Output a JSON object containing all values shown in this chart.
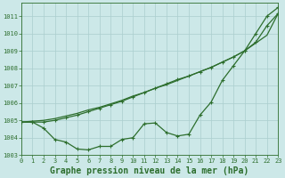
{
  "title": "Graphe pression niveau de la mer (hPa)",
  "hours": [
    0,
    1,
    2,
    3,
    4,
    5,
    6,
    7,
    8,
    9,
    10,
    11,
    12,
    13,
    14,
    15,
    16,
    17,
    18,
    19,
    20,
    21,
    22,
    23
  ],
  "line_straight": [
    1004.9,
    1004.95,
    1005.0,
    1005.1,
    1005.25,
    1005.4,
    1005.6,
    1005.75,
    1005.95,
    1006.15,
    1006.4,
    1006.6,
    1006.85,
    1007.05,
    1007.3,
    1007.55,
    1007.8,
    1008.05,
    1008.35,
    1008.65,
    1009.0,
    1009.45,
    1009.9,
    1011.15
  ],
  "line_mid": [
    1004.9,
    1004.9,
    1004.9,
    1005.0,
    1005.15,
    1005.3,
    1005.5,
    1005.7,
    1005.9,
    1006.1,
    1006.35,
    1006.6,
    1006.85,
    1007.1,
    1007.35,
    1007.55,
    1007.8,
    1008.05,
    1008.35,
    1008.65,
    1009.0,
    1009.5,
    1010.45,
    1011.15
  ],
  "line_detail": [
    1004.9,
    1004.9,
    1004.55,
    1003.9,
    1003.75,
    1003.35,
    1003.3,
    1003.5,
    1003.5,
    1003.9,
    1004.0,
    1004.8,
    1004.85,
    1004.3,
    1004.1,
    1004.2,
    1005.3,
    1006.05,
    1007.3,
    1008.15,
    1009.0,
    1010.0,
    1011.0,
    1011.5
  ],
  "line_color": "#2d6e2d",
  "bg_color": "#cce8e8",
  "grid_color": "#aacece",
  "ylim": [
    1003.0,
    1011.75
  ],
  "yticks": [
    1003,
    1004,
    1005,
    1006,
    1007,
    1008,
    1009,
    1010,
    1011
  ],
  "xlim": [
    0,
    23
  ],
  "xticks": [
    0,
    1,
    2,
    3,
    4,
    5,
    6,
    7,
    8,
    9,
    10,
    11,
    12,
    13,
    14,
    15,
    16,
    17,
    18,
    19,
    20,
    21,
    22,
    23
  ],
  "markersize": 3.0,
  "linewidth": 0.9,
  "tick_fontsize": 5.0,
  "title_fontsize": 7.0
}
